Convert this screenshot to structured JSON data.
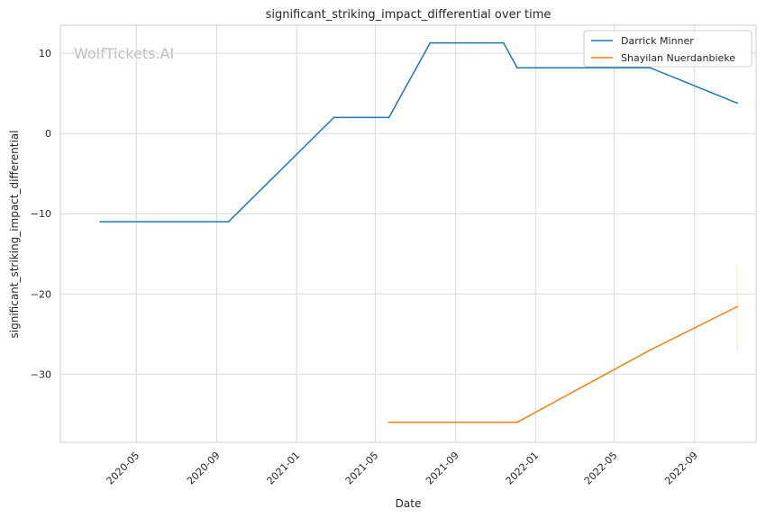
{
  "chart_data": {
    "type": "line",
    "title": "significant_striking_impact_differential over time",
    "xlabel": "Date",
    "ylabel": "significant_striking_impact_differential",
    "watermark": "WolfTickets.AI",
    "x_ticks": [
      "2020-05",
      "2020-09",
      "2021-01",
      "2021-05",
      "2021-09",
      "2022-01",
      "2022-05",
      "2022-09"
    ],
    "y_ticks": [
      10,
      0,
      -10,
      -20,
      -30
    ],
    "ylim": [
      -38.5,
      13.5
    ],
    "xlim": [
      "2020-01-06",
      "2022-12-04"
    ],
    "grid": true,
    "legend_position": "top-right",
    "series": [
      {
        "name": "Darrick Minner",
        "color": "#1f77b4",
        "points": [
          {
            "x": "2020-03-07",
            "y": -11.0
          },
          {
            "x": "2020-09-19",
            "y": -11.0
          },
          {
            "x": "2021-02-27",
            "y": 2.0
          },
          {
            "x": "2021-05-22",
            "y": 2.0
          },
          {
            "x": "2021-07-24",
            "y": 11.3
          },
          {
            "x": "2021-11-13",
            "y": 11.3
          },
          {
            "x": "2021-12-04",
            "y": 8.2
          },
          {
            "x": "2022-06-25",
            "y": 8.2
          },
          {
            "x": "2022-11-05",
            "y": 3.8
          }
        ]
      },
      {
        "name": "Shayilan Nuerdanbieke",
        "color": "#ff7f0e",
        "points": [
          {
            "x": "2021-05-22",
            "y": -36.0
          },
          {
            "x": "2021-12-04",
            "y": -36.0
          },
          {
            "x": "2022-06-25",
            "y": -27.0
          },
          {
            "x": "2022-11-05",
            "y": -21.6
          }
        ],
        "error_band": {
          "x": "2022-11-05",
          "low": -27.2,
          "high": -16.3
        }
      }
    ]
  }
}
